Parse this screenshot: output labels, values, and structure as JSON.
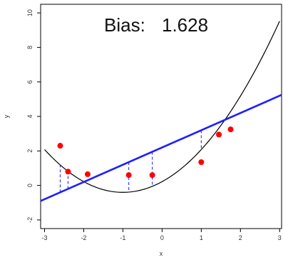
{
  "chart_data": {
    "type": "scatter",
    "title_prefix": "Bias:",
    "title_value": "1.628",
    "xlabel": "x",
    "ylabel": "y",
    "xlim": [
      -3.1,
      3.05
    ],
    "ylim": [
      -2.5,
      10.5
    ],
    "xticks": [
      -3,
      -2,
      -1,
      0,
      1,
      2,
      3
    ],
    "yticks": [
      -2,
      0,
      2,
      4,
      6,
      8,
      10
    ],
    "grid": false,
    "points": [
      {
        "x": -2.6,
        "y": 2.3
      },
      {
        "x": -2.4,
        "y": 0.8
      },
      {
        "x": -1.9,
        "y": 0.65
      },
      {
        "x": -0.85,
        "y": 0.6
      },
      {
        "x": -0.25,
        "y": 0.6
      },
      {
        "x": 1.0,
        "y": 1.35
      },
      {
        "x": 1.45,
        "y": 2.95
      },
      {
        "x": 1.75,
        "y": 3.25
      }
    ],
    "fit_line": {
      "intercept": 2.2,
      "slope": 1.0
    },
    "true_curve": {
      "a": 0.62,
      "h": -1.0,
      "k": -0.4,
      "x_from": -3.0,
      "x_to": 3.0
    },
    "residual_x": [
      -2.6,
      -2.4,
      -0.85,
      -0.25,
      1.0
    ],
    "colors": {
      "points": "#ff0000",
      "fit_line": "#1f1fff",
      "true_curve": "#000000",
      "residuals": "#2a2aff",
      "axis": "#000000"
    }
  }
}
